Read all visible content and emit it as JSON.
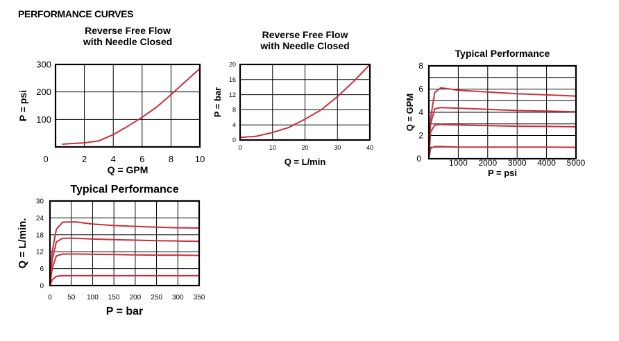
{
  "page": {
    "heading": "PERFORMANCE CURVES"
  },
  "chart_data": [
    {
      "id": "chart1",
      "type": "line",
      "title": "Reverse Free Flow\nwith Needle Closed",
      "xlabel": "Q = GPM",
      "ylabel": "P = psi",
      "xlim": [
        0,
        10
      ],
      "ylim": [
        0,
        300
      ],
      "x_ticks": [
        0,
        2,
        4,
        6,
        8,
        10
      ],
      "y_ticks": [
        100,
        200,
        300
      ],
      "x_grid": [
        0,
        2,
        4,
        6,
        8,
        10
      ],
      "y_grid": [
        0,
        100,
        200,
        300
      ],
      "series": [
        {
          "values": [
            [
              0.5,
              10
            ],
            [
              1,
              12
            ],
            [
              2,
              15
            ],
            [
              3,
              22
            ],
            [
              4,
              45
            ],
            [
              5,
              75
            ],
            [
              6,
              108
            ],
            [
              7,
              145
            ],
            [
              8,
              190
            ],
            [
              9,
              238
            ],
            [
              10,
              285
            ]
          ]
        }
      ]
    },
    {
      "id": "chart2",
      "type": "line",
      "title": "Reverse Free Flow\nwith Needle Closed",
      "xlabel": "Q = L/min",
      "ylabel": "P = bar",
      "xlim": [
        0,
        40
      ],
      "ylim": [
        0,
        20
      ],
      "x_ticks": [
        0,
        10,
        20,
        30,
        40
      ],
      "y_ticks": [
        0,
        4,
        8,
        12,
        16,
        20
      ],
      "x_grid": [
        0,
        10,
        20,
        30,
        40
      ],
      "y_grid": [
        0,
        4,
        8,
        12,
        16,
        20
      ],
      "series": [
        {
          "values": [
            [
              0,
              0.7
            ],
            [
              5,
              1
            ],
            [
              10,
              2
            ],
            [
              15,
              3.3
            ],
            [
              20,
              5.5
            ],
            [
              25,
              8
            ],
            [
              30,
              11.5
            ],
            [
              35,
              15.5
            ],
            [
              40,
              20
            ]
          ]
        }
      ]
    },
    {
      "id": "chart3",
      "type": "line",
      "title": "Typical Performance",
      "xlabel": "P = psi",
      "ylabel": "Q = GPM",
      "xlim": [
        0,
        5000
      ],
      "ylim": [
        0,
        8
      ],
      "x_ticks": [
        1000,
        2000,
        3000,
        4000,
        5000
      ],
      "y_ticks": [
        0,
        2,
        4,
        6,
        8
      ],
      "x_grid": [
        0,
        1000,
        2000,
        3000,
        4000,
        5000
      ],
      "y_grid": [
        0,
        1,
        2,
        3,
        4,
        5,
        6,
        7,
        8
      ],
      "series": [
        {
          "values": [
            [
              0,
              0
            ],
            [
              60,
              3.5
            ],
            [
              200,
              5.7
            ],
            [
              400,
              6.1
            ],
            [
              600,
              6.05
            ],
            [
              1000,
              5.9
            ],
            [
              2000,
              5.75
            ],
            [
              3000,
              5.6
            ],
            [
              4000,
              5.5
            ],
            [
              5000,
              5.4
            ]
          ]
        },
        {
          "values": [
            [
              0,
              0
            ],
            [
              60,
              3
            ],
            [
              200,
              4.3
            ],
            [
              400,
              4.4
            ],
            [
              1000,
              4.35
            ],
            [
              2000,
              4.25
            ],
            [
              3000,
              4.15
            ],
            [
              4000,
              4.1
            ],
            [
              5000,
              4.05
            ]
          ]
        },
        {
          "values": [
            [
              0,
              0
            ],
            [
              60,
              2.3
            ],
            [
              200,
              2.9
            ],
            [
              400,
              2.95
            ],
            [
              1000,
              2.9
            ],
            [
              2000,
              2.85
            ],
            [
              3000,
              2.8
            ],
            [
              4000,
              2.78
            ],
            [
              5000,
              2.75
            ]
          ]
        },
        {
          "values": [
            [
              0,
              0
            ],
            [
              60,
              0.9
            ],
            [
              200,
              1.05
            ],
            [
              400,
              1.05
            ],
            [
              1000,
              1.0
            ],
            [
              2000,
              1.0
            ],
            [
              3000,
              1.0
            ],
            [
              4000,
              1.0
            ],
            [
              5000,
              0.98
            ]
          ]
        }
      ]
    },
    {
      "id": "chart4",
      "type": "line",
      "title": "Typical Performance",
      "xlabel": "P = bar",
      "ylabel": "Q = L/min.",
      "xlim": [
        0,
        350
      ],
      "ylim": [
        0,
        30
      ],
      "x_ticks": [
        0,
        50,
        100,
        150,
        200,
        250,
        300,
        350
      ],
      "y_ticks": [
        0,
        6,
        12,
        18,
        24,
        30
      ],
      "x_grid": [
        0,
        50,
        100,
        150,
        200,
        250,
        300,
        350
      ],
      "y_grid": [
        0,
        6,
        12,
        18,
        24,
        30
      ],
      "series": [
        {
          "values": [
            [
              0,
              0
            ],
            [
              5,
              12
            ],
            [
              15,
              20
            ],
            [
              30,
              22.5
            ],
            [
              60,
              22.6
            ],
            [
              100,
              21.8
            ],
            [
              150,
              21.3
            ],
            [
              200,
              21
            ],
            [
              250,
              20.7
            ],
            [
              300,
              20.5
            ],
            [
              350,
              20.4
            ]
          ]
        },
        {
          "values": [
            [
              0,
              0
            ],
            [
              5,
              9
            ],
            [
              15,
              15.5
            ],
            [
              30,
              16.8
            ],
            [
              60,
              16.8
            ],
            [
              100,
              16.5
            ],
            [
              150,
              16.3
            ],
            [
              200,
              16.1
            ],
            [
              250,
              15.9
            ],
            [
              300,
              15.8
            ],
            [
              350,
              15.7
            ]
          ]
        },
        {
          "values": [
            [
              0,
              0
            ],
            [
              5,
              6
            ],
            [
              15,
              10.5
            ],
            [
              30,
              11.2
            ],
            [
              60,
              11.2
            ],
            [
              100,
              11.1
            ],
            [
              150,
              11
            ],
            [
              200,
              10.9
            ],
            [
              250,
              10.8
            ],
            [
              300,
              10.8
            ],
            [
              350,
              10.7
            ]
          ]
        },
        {
          "values": [
            [
              0,
              0
            ],
            [
              5,
              2
            ],
            [
              15,
              3.3
            ],
            [
              30,
              3.5
            ],
            [
              60,
              3.5
            ],
            [
              100,
              3.5
            ],
            [
              150,
              3.5
            ],
            [
              200,
              3.5
            ],
            [
              250,
              3.5
            ],
            [
              300,
              3.5
            ],
            [
              350,
              3.5
            ]
          ]
        }
      ]
    }
  ]
}
